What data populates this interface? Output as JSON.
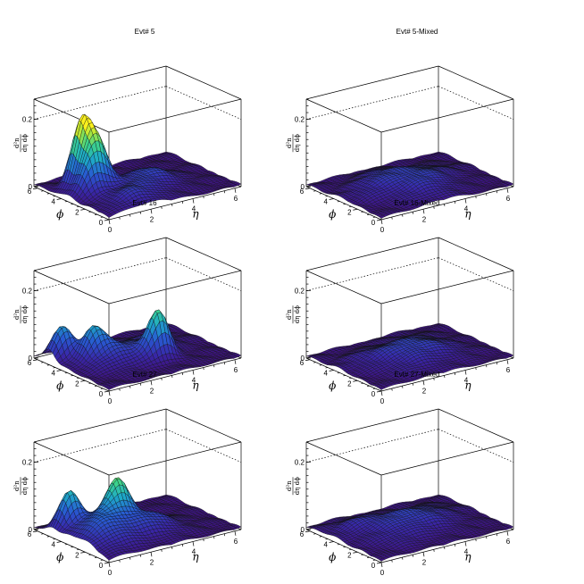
{
  "chart_data": [
    {
      "type": "surface",
      "title": "Evt# 5",
      "xlabel": "η",
      "ylabel": "ϕ",
      "zlabel": "d²n / dη dϕ",
      "x_ticks": [
        "0",
        "2",
        "4",
        "6"
      ],
      "y_ticks": [
        "0",
        "2",
        "4",
        "6"
      ],
      "z_ticks": [
        "0",
        "0.2"
      ],
      "xlim": [
        0,
        6.3
      ],
      "ylim": [
        0,
        6.3
      ],
      "zlim": [
        0,
        0.26
      ],
      "peaks": [
        {
          "eta": 1.2,
          "phi": 4.4,
          "height": 0.19
        },
        {
          "eta": 1.5,
          "phi": 3.6,
          "height": 0.12
        },
        {
          "eta": 0.9,
          "phi": 3.2,
          "height": 0.08
        },
        {
          "eta": 3.4,
          "phi": 2.7,
          "height": 0.05
        },
        {
          "eta": 1.8,
          "phi": 1.2,
          "height": 0.04
        }
      ]
    },
    {
      "type": "surface",
      "title": "Evt# 5-Mixed",
      "xlabel": "η",
      "ylabel": "ϕ",
      "zlabel": "d²n / dη dϕ",
      "x_ticks": [
        "0",
        "2",
        "4",
        "6"
      ],
      "y_ticks": [
        "0",
        "2",
        "4",
        "6"
      ],
      "z_ticks": [
        "0",
        "0.2"
      ],
      "xlim": [
        0,
        6.3
      ],
      "ylim": [
        0,
        6.3
      ],
      "zlim": [
        0,
        0.26
      ],
      "peaks": [
        {
          "eta": 2.5,
          "phi": 4.2,
          "height": 0.03
        },
        {
          "eta": 1.5,
          "phi": 3.0,
          "height": 0.025
        },
        {
          "eta": 3.4,
          "phi": 2.5,
          "height": 0.03
        },
        {
          "eta": 2.8,
          "phi": 1.3,
          "height": 0.022
        },
        {
          "eta": 4.5,
          "phi": 3.5,
          "height": 0.018
        }
      ]
    },
    {
      "type": "surface",
      "title": "Evt# 16",
      "xlabel": "η",
      "ylabel": "ϕ",
      "zlabel": "d²n / dη dϕ",
      "x_ticks": [
        "0",
        "2",
        "4",
        "6"
      ],
      "y_ticks": [
        "0",
        "2",
        "4",
        "6"
      ],
      "z_ticks": [
        "0",
        "0.2"
      ],
      "xlim": [
        0,
        6.3
      ],
      "ylim": [
        0,
        6.3
      ],
      "zlim": [
        0,
        0.26
      ],
      "peaks": [
        {
          "eta": 0.6,
          "phi": 5.0,
          "height": 0.1
        },
        {
          "eta": 1.4,
          "phi": 3.8,
          "height": 0.08
        },
        {
          "eta": 2.0,
          "phi": 3.0,
          "height": 0.05
        },
        {
          "eta": 3.6,
          "phi": 2.2,
          "height": 0.13
        },
        {
          "eta": 4.0,
          "phi": 3.8,
          "height": 0.03
        }
      ]
    },
    {
      "type": "surface",
      "title": "Evt# 16-Mixed",
      "xlabel": "η",
      "ylabel": "ϕ",
      "zlabel": "d²n / dη dϕ",
      "x_ticks": [
        "0",
        "2",
        "4",
        "6"
      ],
      "y_ticks": [
        "0",
        "2",
        "4",
        "6"
      ],
      "z_ticks": [
        "0",
        "0.2"
      ],
      "xlim": [
        0,
        6.3
      ],
      "ylim": [
        0,
        6.3
      ],
      "zlim": [
        0,
        0.26
      ],
      "peaks": [
        {
          "eta": 1.6,
          "phi": 3.6,
          "height": 0.025
        },
        {
          "eta": 3.0,
          "phi": 3.0,
          "height": 0.03
        },
        {
          "eta": 4.2,
          "phi": 2.4,
          "height": 0.022
        },
        {
          "eta": 2.4,
          "phi": 1.6,
          "height": 0.02
        },
        {
          "eta": 4.0,
          "phi": 4.4,
          "height": 0.018
        }
      ]
    },
    {
      "type": "surface",
      "title": "Evt# 27",
      "xlabel": "η",
      "ylabel": "ϕ",
      "zlabel": "d²n / dη dϕ",
      "x_ticks": [
        "0",
        "2",
        "4",
        "6"
      ],
      "y_ticks": [
        "0",
        "2",
        "4",
        "6"
      ],
      "z_ticks": [
        "0",
        "0.2"
      ],
      "xlim": [
        0,
        6.3
      ],
      "ylim": [
        0,
        6.3
      ],
      "zlim": [
        0,
        0.26
      ],
      "peaks": [
        {
          "eta": 0.8,
          "phi": 4.8,
          "height": 0.11
        },
        {
          "eta": 2.4,
          "phi": 3.5,
          "height": 0.11
        },
        {
          "eta": 1.4,
          "phi": 3.2,
          "height": 0.06
        },
        {
          "eta": 3.2,
          "phi": 2.3,
          "height": 0.05
        },
        {
          "eta": 1.0,
          "phi": 1.8,
          "height": 0.04
        }
      ]
    },
    {
      "type": "surface",
      "title": "Evt# 27-Mixed",
      "xlabel": "η",
      "ylabel": "ϕ",
      "zlabel": "d²n / dη dϕ",
      "x_ticks": [
        "0",
        "2",
        "4",
        "6"
      ],
      "y_ticks": [
        "0",
        "2",
        "4",
        "6"
      ],
      "z_ticks": [
        "0",
        "0.2"
      ],
      "xlim": [
        0,
        6.3
      ],
      "ylim": [
        0,
        6.3
      ],
      "zlim": [
        0,
        0.26
      ],
      "peaks": [
        {
          "eta": 1.4,
          "phi": 4.4,
          "height": 0.03
        },
        {
          "eta": 2.8,
          "phi": 3.4,
          "height": 0.028
        },
        {
          "eta": 3.8,
          "phi": 2.6,
          "height": 0.025
        },
        {
          "eta": 1.8,
          "phi": 2.0,
          "height": 0.022
        },
        {
          "eta": 4.6,
          "phi": 4.0,
          "height": 0.02
        }
      ]
    }
  ]
}
